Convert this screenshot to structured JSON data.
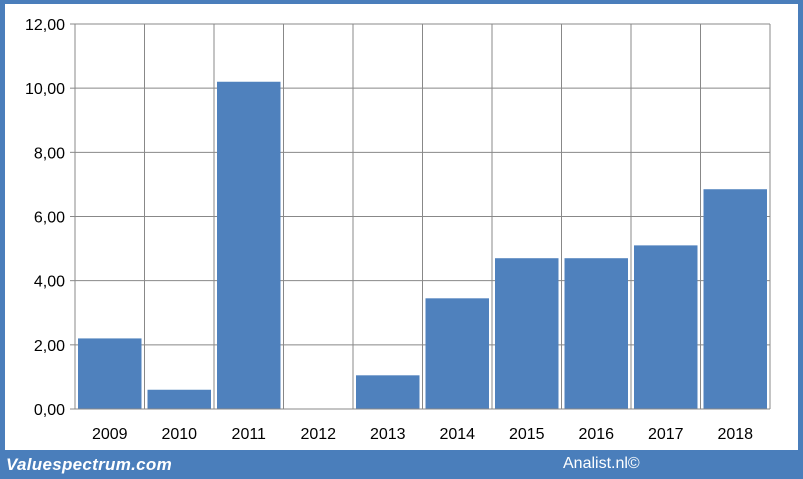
{
  "footer": {
    "left_text": "Valuespectrum.com",
    "right_text": "Analist.nl©"
  },
  "colors": {
    "frame": "#4a7ebb",
    "bar": "#4f81bd",
    "grid": "#888888",
    "background": "#ffffff"
  },
  "chart_data": {
    "type": "bar",
    "categories": [
      "2009",
      "2010",
      "2011",
      "2012",
      "2013",
      "2014",
      "2015",
      "2016",
      "2017",
      "2018"
    ],
    "values": [
      2.2,
      0.6,
      10.2,
      0,
      1.05,
      3.45,
      4.7,
      4.7,
      5.1,
      6.85
    ],
    "ylim": [
      0,
      12
    ],
    "yticks": [
      "0,00",
      "2,00",
      "4,00",
      "6,00",
      "8,00",
      "10,00",
      "12,00"
    ],
    "title": "",
    "xlabel": "",
    "ylabel": "",
    "grid": true,
    "legend": "none"
  }
}
